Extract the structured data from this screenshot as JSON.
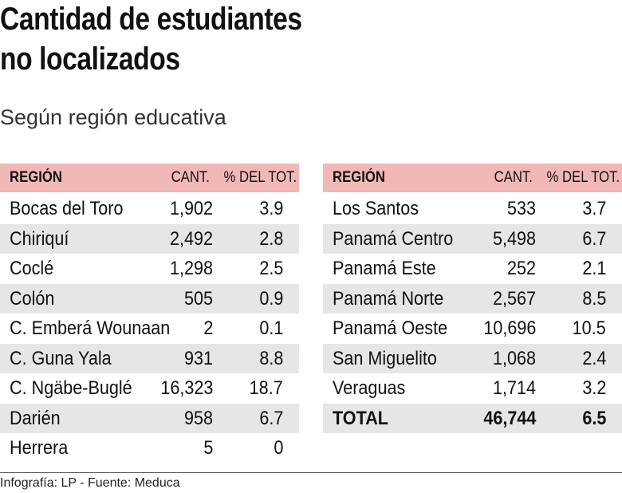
{
  "header": {
    "title_lines": [
      "Cantidad de estudiantes",
      "no localizados"
    ],
    "subtitle": "Según región educativa"
  },
  "tables": [
    {
      "columns": [
        "REGIÓN",
        "CANT.",
        "% DEL TOT."
      ],
      "rows": [
        [
          "Bocas del Toro",
          "1,902",
          "3.9"
        ],
        [
          "Chiriquí",
          "2,492",
          "2.8"
        ],
        [
          "Coclé",
          "1,298",
          "2.5"
        ],
        [
          "Colón",
          "505",
          "0.9"
        ],
        [
          "C. Emberá Wounaan",
          "2",
          "0.1"
        ],
        [
          "C. Guna Yala",
          "931",
          "8.8"
        ],
        [
          "C. Ngäbe-Buglé",
          "16,323",
          "18.7"
        ],
        [
          "Darién",
          "958",
          "6.7"
        ],
        [
          "Herrera",
          "5",
          "0"
        ]
      ]
    },
    {
      "columns": [
        "REGIÓN",
        "CANT.",
        "% DEL TOT."
      ],
      "rows": [
        [
          "Los Santos",
          "533",
          "3.7"
        ],
        [
          "Panamá Centro",
          "5,498",
          "6.7"
        ],
        [
          "Panamá Este",
          "252",
          "2.1"
        ],
        [
          "Panamá Norte",
          "2,567",
          "8.5"
        ],
        [
          "Panamá Oeste",
          "10,696",
          "10.5"
        ],
        [
          "San Miguelito",
          "1,068",
          "2.4"
        ],
        [
          "Veraguas",
          "1,714",
          "3.2"
        ]
      ],
      "total": [
        "TOTAL",
        "46,744",
        "6.5"
      ]
    }
  ],
  "footer": {
    "source": "Infografía: LP - Fuente: Meduca"
  }
}
